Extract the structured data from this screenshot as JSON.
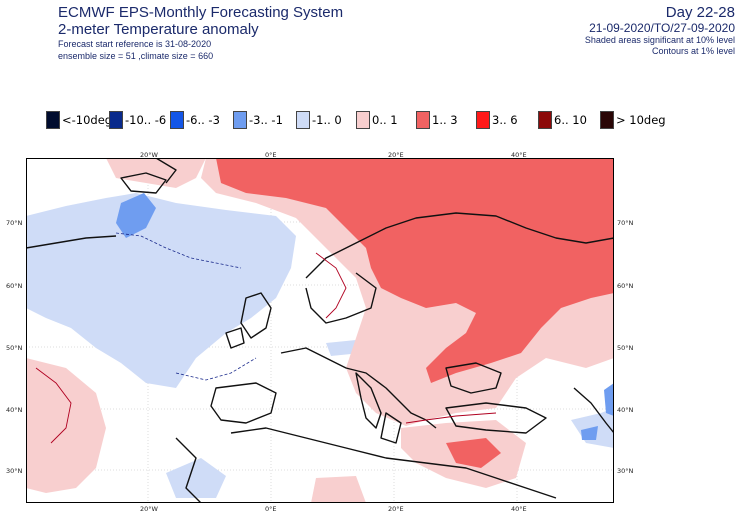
{
  "header": {
    "title_line1": "ECMWF EPS-Monthly Forecasting System",
    "title_line2": "2-meter Temperature anomaly",
    "forecast_ref": "Forecast start reference is 31-08-2020",
    "ensemble_info": "ensemble size = 51  ,climate size = 660",
    "period_label": "Day 22-28",
    "date_range": "21-09-2020/TO/27-09-2020",
    "note_shaded": "Shaded areas significant at 10% level",
    "note_contours": "Contours at 1% level"
  },
  "legend": [
    {
      "label": "<-10deg",
      "color": "#000c2e"
    },
    {
      "label": "-10.. -6",
      "color": "#0a2a8c"
    },
    {
      "label": "-6.. -3",
      "color": "#1456e6"
    },
    {
      "label": "-3.. -1",
      "color": "#6f9df0"
    },
    {
      "label": "-1.. 0",
      "color": "#cfdcf7"
    },
    {
      "label": "0.. 1",
      "color": "#f8cfcf"
    },
    {
      "label": "1.. 3",
      "color": "#f16262"
    },
    {
      "label": "3.. 6",
      "color": "#ff1a1a"
    },
    {
      "label": "6.. 10",
      "color": "#8c0a0a"
    },
    {
      "label": "> 10deg",
      "color": "#2a0606"
    }
  ],
  "map": {
    "longitude_ticks": [
      "20°W",
      "0°E",
      "20°E",
      "40°E"
    ],
    "latitude_ticks": [
      "70°N",
      "60°N",
      "50°N",
      "40°N",
      "30°N"
    ]
  }
}
